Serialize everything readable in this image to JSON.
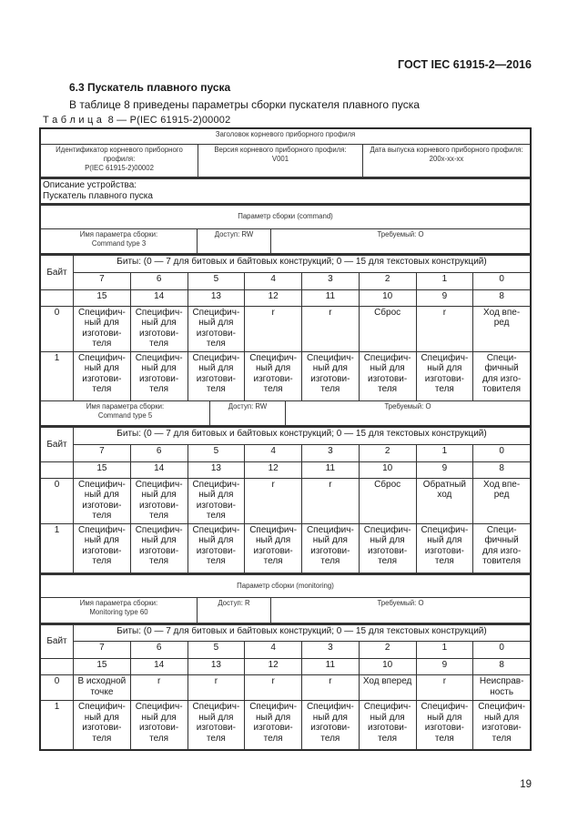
{
  "page": {
    "header": "ГОСТ IEC 61915-2—2016",
    "page_number": "19"
  },
  "section": {
    "title": "6.3 Пускатель плавного пуска",
    "intro": "В таблице 8 приведены параметры сборки пускателя плавного пуска",
    "caption": "Т а б л и ц а  8 — P(IEC 61915-2)00002"
  },
  "profile": {
    "title": "Заголовок корневого приборного профиля",
    "id": "Идентификатор корневого приборного профиля:\nP(IEC 61915-2)00002",
    "version": "Версия корневого приборного профиля:\nV001",
    "date": "Дата выпуска корневого приборного профиля:\n200x-xx-xx"
  },
  "description": {
    "label": "Описание устройства:",
    "value": "Пускатель плавного пуска"
  },
  "blocks": [
    {
      "param_title": "Параметр сборки (command)",
      "name": "Имя параметра сборки:\nCommand type 3",
      "access": "Доступ: RW",
      "required": "Требуемый: O",
      "bits_title": "Биты: (0 — 7 для битовых и байтовых конструкций; 0 — 15 для текстовых конструкций)",
      "byte_label": "Байт",
      "high": [
        "7",
        "6",
        "5",
        "4",
        "3",
        "2",
        "1",
        "0"
      ],
      "low": [
        "15",
        "14",
        "13",
        "12",
        "11",
        "10",
        "9",
        "8"
      ],
      "rows": [
        {
          "byte": "0",
          "cells": [
            "Специфич-\nный для\nизготови-\nтеля",
            "Специфич-\nный для\nизготови-\nтеля",
            "Специфич-\nный для\nизготови-\nтеля",
            "r",
            "r",
            "Сброс",
            "r",
            "Ход впе-\nред"
          ]
        },
        {
          "byte": "1",
          "cells": [
            "Специфич-\nный для\nизготови-\nтеля",
            "Специфич-\nный для\nизготови-\nтеля",
            "Специфич-\nный для\nизготови-\nтеля",
            "Специфич-\nный для\nизготови-\nтеля",
            "Специфич-\nный для\nизготови-\nтеля",
            "Специфич-\nный для\nизготови-\nтеля",
            "Специфич-\nный для\nизготови-\nтеля",
            "Специ-\nфичный\nдля изго-\nтовителя"
          ]
        }
      ]
    },
    {
      "param_title": "",
      "name": "Имя параметра сборки:\nCommand type 5",
      "access": "Доступ: RW",
      "required": "Требуемый: O",
      "bits_title": "Биты: (0 — 7 для битовых и байтовых конструкций; 0 — 15 для текстовых конструкций)",
      "byte_label": "Байт",
      "high": [
        "7",
        "6",
        "5",
        "4",
        "3",
        "2",
        "1",
        "0"
      ],
      "low": [
        "15",
        "14",
        "13",
        "12",
        "11",
        "10",
        "9",
        "8"
      ],
      "rows": [
        {
          "byte": "0",
          "cells": [
            "Специфич-\nный для\nизготови-\nтеля",
            "Специфич-\nный для\nизготови-\nтеля",
            "Специфич-\nный для\nизготови-\nтеля",
            "r",
            "r",
            "Сброс",
            "Обратный\nход",
            "Ход впе-\nред"
          ]
        },
        {
          "byte": "1",
          "cells": [
            "Специфич-\nный для\nизготови-\nтеля",
            "Специфич-\nный для\nизготови-\nтеля",
            "Специфич-\nный для\nизготови-\nтеля",
            "Специфич-\nный для\nизготови-\nтеля",
            "Специфич-\nный для\nизготови-\nтеля",
            "Специфич-\nный для\nизготови-\nтеля",
            "Специфич-\nный для\nизготови-\nтеля",
            "Специ-\nфичный\nдля изго-\nтовителя"
          ]
        }
      ]
    },
    {
      "param_title": "Параметр сборки (monitoring)",
      "name": "Имя параметра сборки:\nMonitoring type 60",
      "access": "Доступ: R",
      "required": "Требуемый: O",
      "bits_title": "Биты: (0 — 7 для битовых и байтовых конструкций; 0 — 15 для текстовых конструкций)",
      "byte_label": "Байт",
      "high": [
        "7",
        "6",
        "5",
        "4",
        "3",
        "2",
        "1",
        "0"
      ],
      "low": [
        "15",
        "14",
        "13",
        "12",
        "11",
        "10",
        "9",
        "8"
      ],
      "rows": [
        {
          "byte": "0",
          "cells": [
            "В исходной\nточке",
            "r",
            "r",
            "r",
            "r",
            "Ход вперед",
            "r",
            "Неисправ-\nность"
          ]
        },
        {
          "byte": "1",
          "cells": [
            "Специфич-\nный для\nизготови-\nтеля",
            "Специфич-\nный для\nизготови-\nтеля",
            "Специфич-\nный для\nизготови-\nтеля",
            "Специфич-\nный для\nизготови-\nтеля",
            "Специфич-\nный для\nизготови-\nтеля",
            "Специфич-\nный для\nизготови-\nтеля",
            "Специфич-\nный для\nизготови-\nтеля",
            "Специфич-\nный для\nизготови-\nтеля"
          ]
        }
      ]
    }
  ]
}
